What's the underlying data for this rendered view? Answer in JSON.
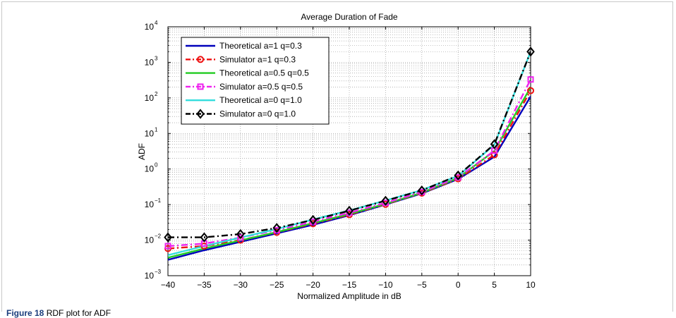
{
  "chart_data": {
    "type": "line",
    "title": "Average Duration of Fade",
    "xlabel": "Normalized Amplitude in dB",
    "ylabel": "ADF",
    "x": [
      -40,
      -35,
      -30,
      -25,
      -20,
      -15,
      -10,
      -5,
      0,
      5,
      10
    ],
    "xlim": [
      -40,
      10
    ],
    "ylim": [
      0.001,
      10000
    ],
    "yscale": "log",
    "xticks": [
      "−40",
      "−35",
      "−30",
      "−25",
      "−20",
      "−15",
      "−10",
      "−5",
      "0",
      "5",
      "10"
    ],
    "yticks": [
      {
        "base": "10",
        "exp": "−3"
      },
      {
        "base": "10",
        "exp": "−2"
      },
      {
        "base": "10",
        "exp": "−1"
      },
      {
        "base": "10",
        "exp": "0"
      },
      {
        "base": "10",
        "exp": "1"
      },
      {
        "base": "10",
        "exp": "2"
      },
      {
        "base": "10",
        "exp": "3"
      },
      {
        "base": "10",
        "exp": "4"
      }
    ],
    "grid": true,
    "legend_position": "top-left",
    "series": [
      {
        "name": "Theoretical a=1 q=0.3",
        "color": "#0000bb",
        "dash": "solid",
        "marker": "none",
        "values": [
          0.0028,
          0.0052,
          0.009,
          0.0155,
          0.027,
          0.05,
          0.1,
          0.205,
          0.52,
          2.2,
          110
        ]
      },
      {
        "name": "Simulator a=1 q=0.3",
        "color": "#ee1111",
        "dash": "dashdot",
        "marker": "circle",
        "values": [
          0.0058,
          0.0068,
          0.01,
          0.0165,
          0.029,
          0.052,
          0.102,
          0.21,
          0.53,
          2.5,
          160
        ]
      },
      {
        "name": "Theoretical a=0.5 q=0.5",
        "color": "#22cc22",
        "dash": "solid",
        "marker": "none",
        "values": [
          0.0032,
          0.0058,
          0.0098,
          0.0168,
          0.03,
          0.054,
          0.105,
          0.215,
          0.56,
          3.2,
          200
        ]
      },
      {
        "name": "Simulator a=0.5 q=0.5",
        "color": "#ee22ee",
        "dash": "dashdot",
        "marker": "square",
        "values": [
          0.0068,
          0.008,
          0.0118,
          0.019,
          0.033,
          0.059,
          0.112,
          0.225,
          0.58,
          3.3,
          330
        ]
      },
      {
        "name": "Theoretical a=0 q=1.0",
        "color": "#33dddd",
        "dash": "solid",
        "marker": "none",
        "values": [
          0.0038,
          0.0068,
          0.0118,
          0.0205,
          0.038,
          0.068,
          0.13,
          0.255,
          0.64,
          4.8,
          2000
        ]
      },
      {
        "name": "Simulator a=0 q=1.0",
        "color": "#000000",
        "dash": "dashdot",
        "marker": "diamond",
        "values": [
          0.012,
          0.012,
          0.0148,
          0.022,
          0.037,
          0.067,
          0.128,
          0.25,
          0.66,
          5.0,
          2000
        ]
      }
    ]
  },
  "caption": {
    "label": "Figure 18",
    "text": "RDF plot for ADF"
  }
}
